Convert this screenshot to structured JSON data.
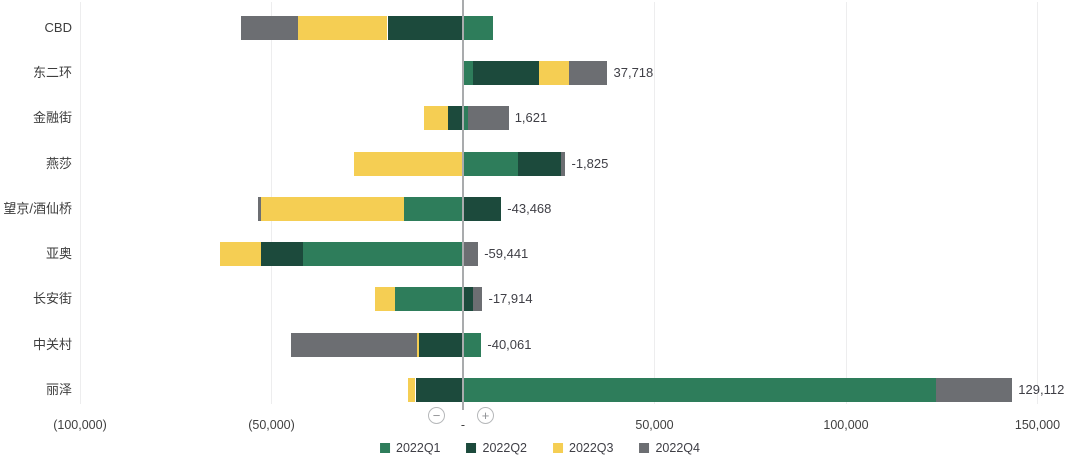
{
  "chart_data": {
    "type": "bar",
    "orientation": "horizontal",
    "stacked": true,
    "grid": true,
    "legend_position": "bottom-center",
    "categories": [
      "CBD",
      "东二环",
      "金融街",
      "燕莎",
      "望京/酒仙桥",
      "亚奥",
      "长安街",
      "中关村",
      "丽泽"
    ],
    "series": [
      {
        "name": "2022Q1",
        "color": "#2E7D5B",
        "values": [
          7900,
          2600,
          1400,
          14300,
          -15500,
          -41800,
          -17700,
          4800,
          123500
        ]
      },
      {
        "name": "2022Q2",
        "color": "#1C4A3C",
        "values": [
          -19700,
          17200,
          -3800,
          11400,
          10000,
          -10900,
          2550,
          -11400,
          -12400
        ]
      },
      {
        "name": "2022Q3",
        "color": "#F5CE53",
        "values": [
          -23400,
          7900,
          -6500,
          -28600,
          -37200,
          -10700,
          -5300,
          -500,
          -1900
        ]
      },
      {
        "name": "2022Q4",
        "color": "#6C6E72",
        "values": [
          -15000,
          10018,
          10521,
          1075,
          -768,
          3959,
          2536,
          -32961,
          19912
        ]
      }
    ],
    "total_labels": [
      null,
      "37,718",
      "1,621",
      "-1,825",
      "-43,468",
      "-59,441",
      "-17,914",
      "-40,061",
      "129,112"
    ],
    "x_axis": {
      "ticks": [
        -100000,
        -50000,
        0,
        50000,
        100000,
        150000
      ],
      "tick_labels": [
        "(100,000)",
        "(50,000)",
        "-",
        "50,000",
        "100,000",
        "150,000"
      ],
      "range": [
        -115000,
        162000
      ]
    },
    "colors": {
      "zero_line": "#A9ABAD",
      "gridline": "#EDEDEE",
      "text": "#404040"
    }
  },
  "controls": {
    "zoom_out_label": "−",
    "zoom_in_label": "+"
  }
}
